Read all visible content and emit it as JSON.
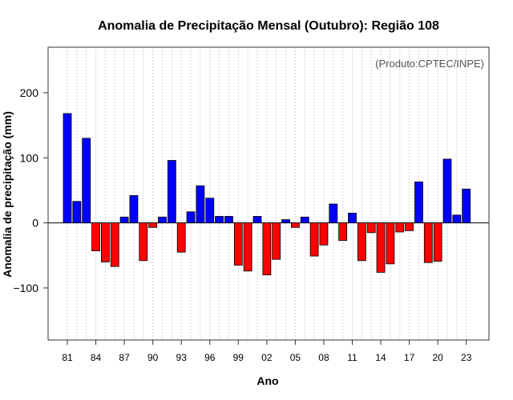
{
  "chart_data": {
    "type": "bar",
    "title": "Anomalia de Precipitação Mensal (Outubro): Região 108",
    "xlabel": "Ano",
    "ylabel": "Anomalia de precipitação (mm)",
    "credit": "(Produto:CPTEC/INPE)",
    "ylim": [
      -180,
      270
    ],
    "yticks": [
      -100,
      0,
      100,
      200
    ],
    "xtick_labels": [
      "81",
      "84",
      "87",
      "90",
      "93",
      "96",
      "99",
      "02",
      "05",
      "08",
      "11",
      "14",
      "17",
      "20",
      "23"
    ],
    "xtick_every": 3,
    "positive_color": "#0000ff",
    "negative_color": "#ff0000",
    "categories": [
      "1981",
      "1982",
      "1983",
      "1984",
      "1985",
      "1986",
      "1987",
      "1988",
      "1989",
      "1990",
      "1991",
      "1992",
      "1993",
      "1994",
      "1995",
      "1996",
      "1997",
      "1998",
      "1999",
      "2000",
      "2001",
      "2002",
      "2003",
      "2004",
      "2005",
      "2006",
      "2007",
      "2008",
      "2009",
      "2010",
      "2011",
      "2012",
      "2013",
      "2014",
      "2015",
      "2016",
      "2017",
      "2018",
      "2019",
      "2020",
      "2021",
      "2022",
      "2023"
    ],
    "values": [
      168,
      33,
      130,
      -43,
      -60,
      -67,
      9,
      42,
      -58,
      -7,
      9,
      96,
      -45,
      17,
      57,
      38,
      10,
      10,
      -65,
      -74,
      10,
      -80,
      -56,
      5,
      -7,
      9,
      -51,
      -34,
      29,
      -27,
      15,
      -58,
      -15,
      -76,
      -63,
      -14,
      -12,
      63,
      -61,
      -59,
      98,
      12,
      52
    ]
  }
}
